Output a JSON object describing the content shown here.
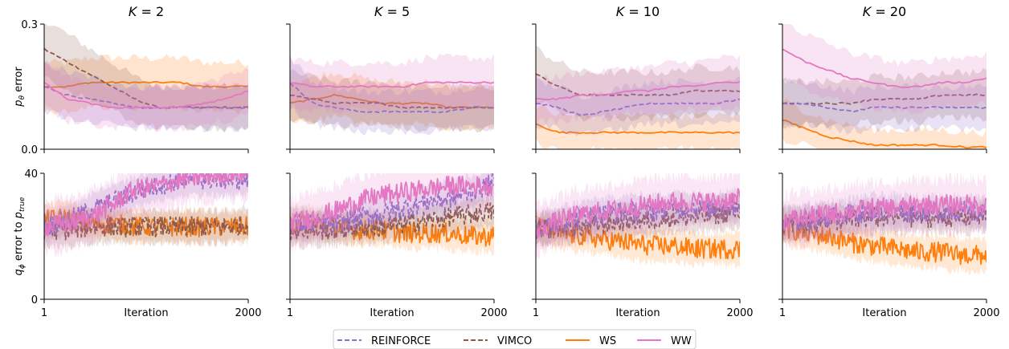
{
  "chart_data": {
    "type": "line",
    "legend": {
      "placement": "bottom-center",
      "entries": [
        {
          "name": "REINFORCE",
          "color": "#8e6fc9",
          "dash": "dashed"
        },
        {
          "name": "VIMCO",
          "color": "#8c5a4f",
          "dash": "dashed"
        },
        {
          "name": "WS",
          "color": "#ff7f0e",
          "dash": "solid"
        },
        {
          "name": "WW",
          "color": "#e377c2",
          "dash": "solid"
        }
      ]
    },
    "x_tick_labels": [
      "1",
      "2000"
    ],
    "xlabel": "Iteration",
    "xlim": [
      1,
      2000
    ],
    "rows": [
      {
        "ylabel_main": "p",
        "ylabel_sub": "θ",
        "ylabel_rest": " error",
        "ylim": [
          0,
          0.3
        ],
        "yticks": [
          "0.0",
          "0.3"
        ]
      },
      {
        "ylabel_main": "q",
        "ylabel_sub": "ϕ",
        "ylabel_rest": " error to ",
        "ylabel_main2": "p",
        "ylabel_sub2": "true",
        "ylim": [
          0,
          40
        ],
        "yticks": [
          "0",
          "40"
        ]
      }
    ],
    "panels": [
      {
        "title": "K = 2",
        "row": 0,
        "col": 0,
        "series": {
          "REINFORCE": [
            0.15,
            0.13,
            0.12,
            0.11,
            0.1,
            0.1,
            0.1,
            0.1,
            0.1,
            0.1
          ],
          "VIMCO": [
            0.24,
            0.21,
            0.18,
            0.15,
            0.12,
            0.1,
            0.1,
            0.1,
            0.1,
            0.1
          ],
          "WS": [
            0.15,
            0.15,
            0.16,
            0.16,
            0.16,
            0.16,
            0.16,
            0.15,
            0.15,
            0.15
          ],
          "WW": [
            0.16,
            0.12,
            0.11,
            0.1,
            0.1,
            0.1,
            0.1,
            0.11,
            0.12,
            0.14
          ]
        }
      },
      {
        "title": "K = 5",
        "row": 0,
        "col": 1,
        "series": {
          "REINFORCE": [
            0.16,
            0.11,
            0.1,
            0.09,
            0.09,
            0.09,
            0.09,
            0.09,
            0.1,
            0.1
          ],
          "VIMCO": [
            0.13,
            0.12,
            0.11,
            0.11,
            0.11,
            0.1,
            0.1,
            0.1,
            0.1,
            0.1
          ],
          "WS": [
            0.11,
            0.12,
            0.13,
            0.12,
            0.11,
            0.11,
            0.11,
            0.1,
            0.1,
            0.1
          ],
          "WW": [
            0.16,
            0.15,
            0.15,
            0.15,
            0.15,
            0.15,
            0.16,
            0.16,
            0.16,
            0.16
          ]
        }
      },
      {
        "title": "K = 10",
        "row": 0,
        "col": 2,
        "series": {
          "REINFORCE": [
            0.11,
            0.1,
            0.08,
            0.09,
            0.1,
            0.11,
            0.11,
            0.11,
            0.11,
            0.12
          ],
          "VIMCO": [
            0.18,
            0.15,
            0.13,
            0.13,
            0.13,
            0.13,
            0.13,
            0.14,
            0.14,
            0.14
          ],
          "WS": [
            0.06,
            0.04,
            0.04,
            0.04,
            0.04,
            0.04,
            0.04,
            0.04,
            0.04,
            0.04
          ],
          "WW": [
            0.12,
            0.12,
            0.13,
            0.13,
            0.14,
            0.14,
            0.15,
            0.15,
            0.16,
            0.16
          ]
        }
      },
      {
        "title": "K = 20",
        "row": 0,
        "col": 3,
        "series": {
          "REINFORCE": [
            0.11,
            0.11,
            0.1,
            0.09,
            0.1,
            0.1,
            0.1,
            0.1,
            0.1,
            0.1
          ],
          "VIMCO": [
            0.11,
            0.11,
            0.11,
            0.11,
            0.12,
            0.12,
            0.12,
            0.13,
            0.13,
            0.13
          ],
          "WS": [
            0.07,
            0.05,
            0.03,
            0.02,
            0.01,
            0.01,
            0.01,
            0.01,
            0.005,
            0.005
          ],
          "WW": [
            0.24,
            0.21,
            0.19,
            0.17,
            0.16,
            0.15,
            0.15,
            0.16,
            0.16,
            0.17
          ]
        }
      },
      {
        "title": "",
        "row": 1,
        "col": 0,
        "series": {
          "REINFORCE": [
            23,
            25,
            28,
            31,
            34,
            36,
            38,
            38,
            38,
            38
          ],
          "VIMCO": [
            22,
            22,
            23,
            23,
            23,
            23,
            23,
            23,
            23,
            24
          ],
          "WS": [
            25,
            26,
            24,
            24,
            23,
            23,
            23,
            23,
            23,
            23
          ],
          "WW": [
            23,
            24,
            26,
            30,
            35,
            36,
            38,
            39,
            40,
            40
          ]
        }
      },
      {
        "title": "",
        "row": 1,
        "col": 1,
        "series": {
          "REINFORCE": [
            24,
            24,
            24,
            26,
            27,
            29,
            31,
            32,
            34,
            37
          ],
          "VIMCO": [
            22,
            22,
            22,
            23,
            23,
            24,
            25,
            26,
            27,
            28
          ],
          "WS": [
            24,
            24,
            23,
            22,
            22,
            21,
            21,
            21,
            20,
            20
          ],
          "WW": [
            24,
            26,
            28,
            31,
            33,
            34,
            35,
            36,
            36,
            36
          ]
        }
      },
      {
        "title": "",
        "row": 1,
        "col": 2,
        "series": {
          "REINFORCE": [
            22,
            24,
            26,
            27,
            28,
            28,
            29,
            29,
            29,
            30
          ],
          "VIMCO": [
            22,
            23,
            23,
            24,
            25,
            25,
            26,
            26,
            27,
            28
          ],
          "WS": [
            23,
            21,
            20,
            19,
            18,
            17,
            17,
            16,
            16,
            16
          ],
          "WW": [
            22,
            25,
            27,
            28,
            29,
            30,
            31,
            31,
            31,
            32
          ]
        }
      },
      {
        "title": "",
        "row": 1,
        "col": 3,
        "series": {
          "REINFORCE": [
            24,
            25,
            26,
            27,
            28,
            28,
            28,
            28,
            28,
            27
          ],
          "VIMCO": [
            24,
            24,
            25,
            25,
            26,
            26,
            26,
            26,
            26,
            27
          ],
          "WS": [
            23,
            21,
            20,
            18,
            17,
            16,
            15,
            15,
            14,
            14
          ],
          "WW": [
            25,
            26,
            27,
            28,
            29,
            29,
            30,
            30,
            30,
            30
          ]
        }
      }
    ]
  }
}
